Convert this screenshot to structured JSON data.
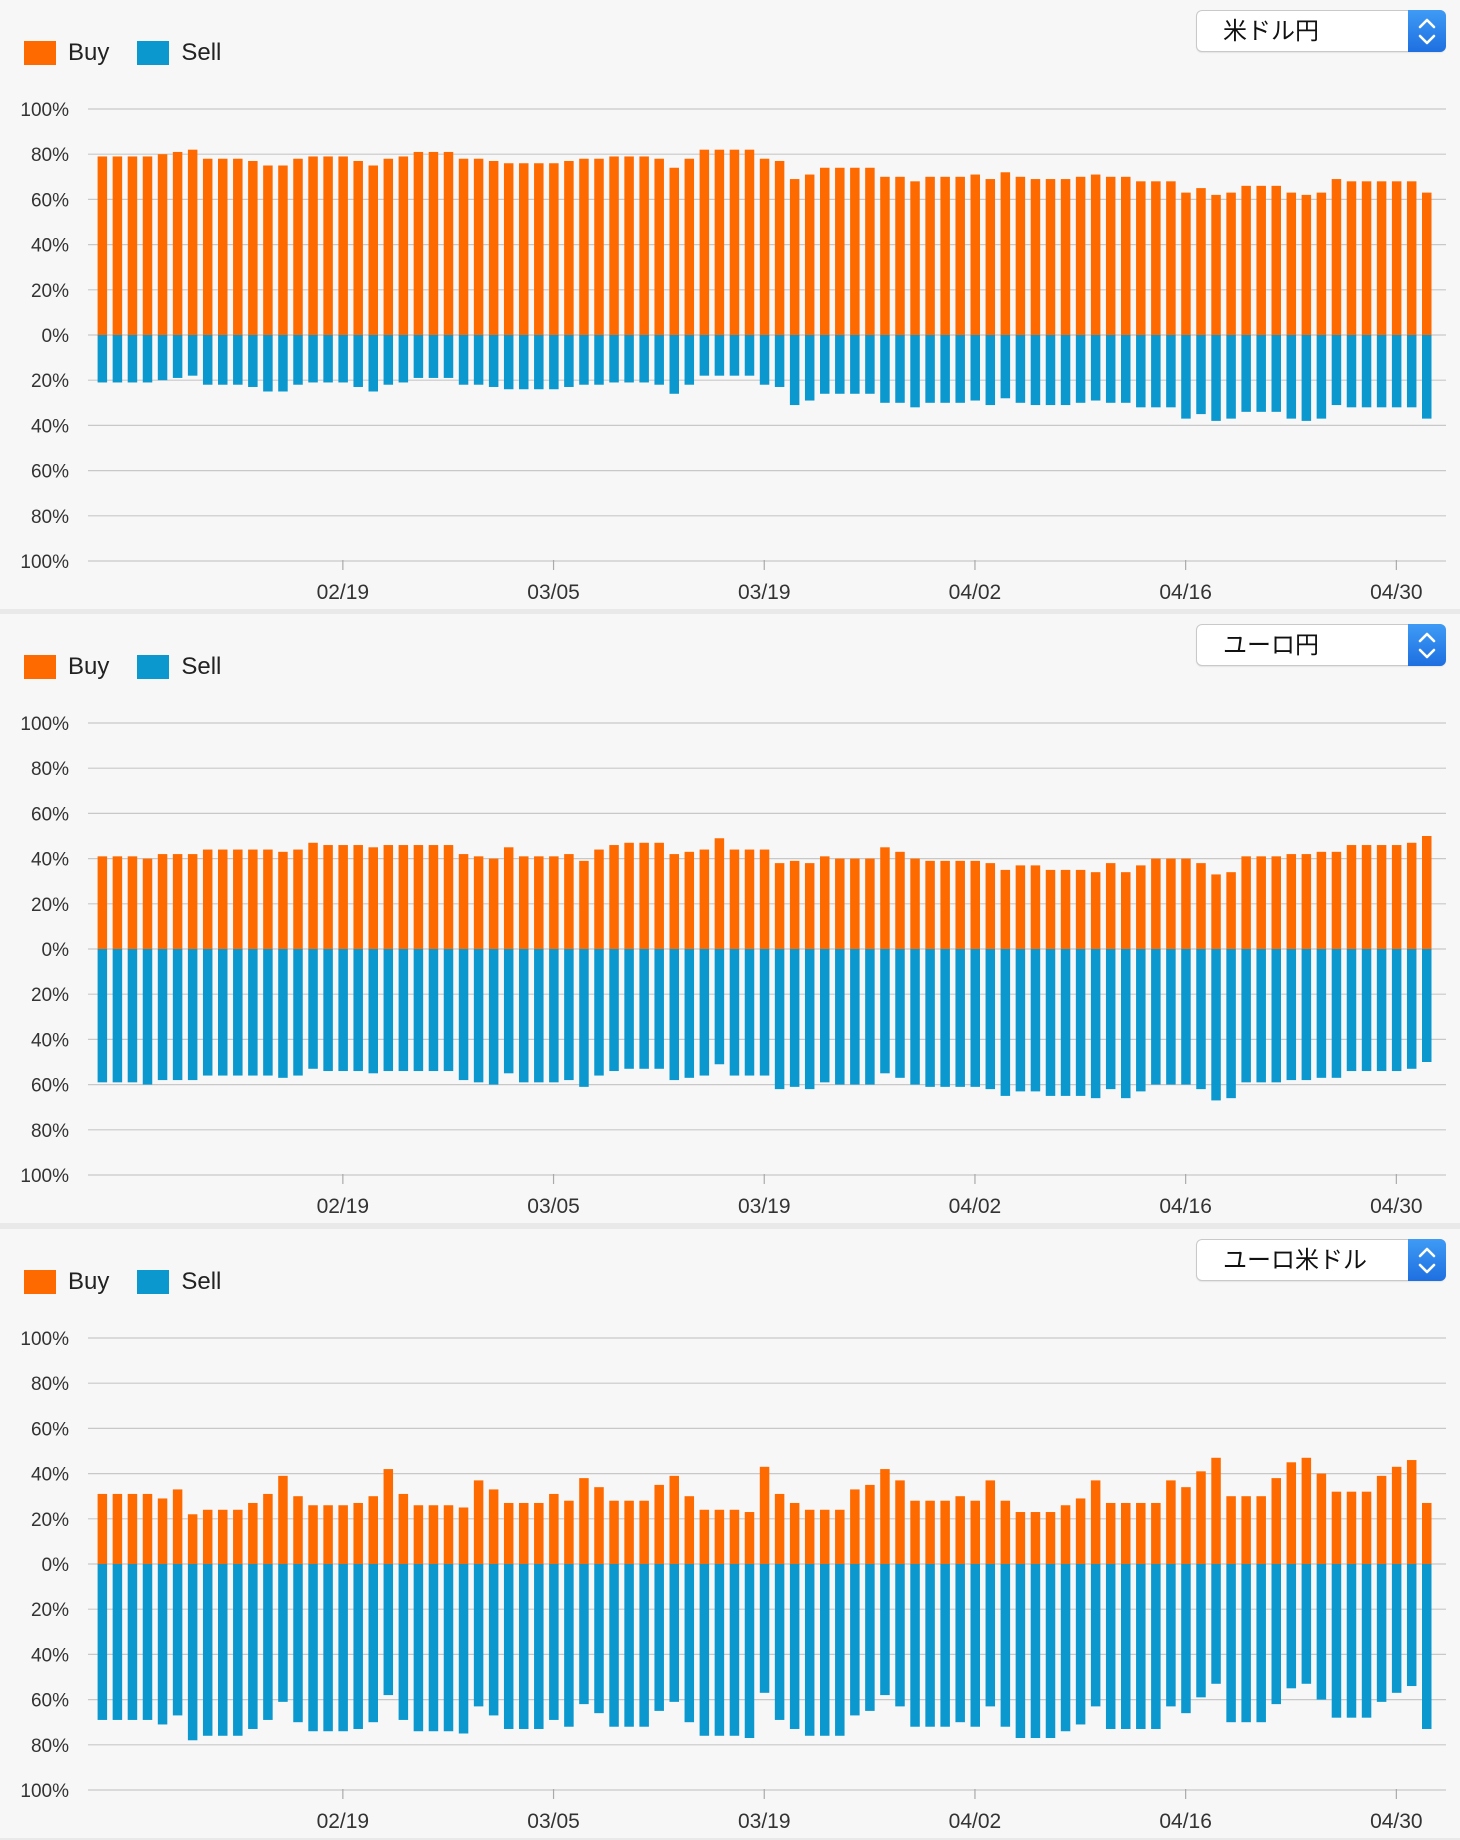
{
  "legend": {
    "buy_label": "Buy",
    "sell_label": "Sell"
  },
  "colors": {
    "buy": "#ff6a00",
    "sell": "#0a98cf",
    "grid": "#c8c8c8"
  },
  "panels": [
    {
      "currency": "米ドル円",
      "chart_data": {
        "type": "bar",
        "stacked_diverging": true,
        "y_tick_labels": [
          "100%",
          "80%",
          "60%",
          "40%",
          "20%",
          "0%",
          "20%",
          "40%",
          "60%",
          "80%",
          "100%"
        ],
        "x_tick_labels": [
          "02/19",
          "03/05",
          "03/19",
          "04/02",
          "04/16",
          "04/30"
        ],
        "x_tick_index": [
          10,
          24,
          38,
          52,
          66,
          80
        ],
        "ylim": [
          -100,
          100
        ],
        "series": [
          {
            "name": "Buy",
            "values": [
              79,
              79,
              79,
              79,
              80,
              81,
              82,
              78,
              78,
              78,
              77,
              75,
              75,
              78,
              79,
              79,
              79,
              77,
              75,
              78,
              79,
              81,
              81,
              81,
              78,
              78,
              77,
              76,
              76,
              76,
              76,
              77,
              78,
              78,
              79,
              79,
              79,
              78,
              74,
              78,
              82,
              82,
              82,
              82,
              78,
              77,
              69,
              71,
              74,
              74,
              74,
              74,
              70,
              70,
              68,
              70,
              70,
              70,
              71,
              69,
              72,
              70,
              69,
              69,
              69,
              70,
              71,
              70,
              70,
              68,
              68,
              68,
              63,
              65,
              62,
              63,
              66,
              66,
              66,
              63,
              62,
              63,
              69,
              68,
              68,
              68,
              68,
              68,
              63
            ]
          },
          {
            "name": "Sell",
            "values": [
              21,
              21,
              21,
              21,
              20,
              19,
              18,
              22,
              22,
              22,
              23,
              25,
              25,
              22,
              21,
              21,
              21,
              23,
              25,
              22,
              21,
              19,
              19,
              19,
              22,
              22,
              23,
              24,
              24,
              24,
              24,
              23,
              22,
              22,
              21,
              21,
              21,
              22,
              26,
              22,
              18,
              18,
              18,
              18,
              22,
              23,
              31,
              29,
              26,
              26,
              26,
              26,
              30,
              30,
              32,
              30,
              30,
              30,
              29,
              31,
              28,
              30,
              31,
              31,
              31,
              30,
              29,
              30,
              30,
              32,
              32,
              32,
              37,
              35,
              38,
              37,
              34,
              34,
              34,
              37,
              38,
              37,
              31,
              32,
              32,
              32,
              32,
              32,
              37
            ]
          }
        ]
      }
    },
    {
      "currency": "ユーロ円",
      "chart_data": {
        "type": "bar",
        "stacked_diverging": true,
        "y_tick_labels": [
          "100%",
          "80%",
          "60%",
          "40%",
          "20%",
          "0%",
          "20%",
          "40%",
          "60%",
          "80%",
          "100%"
        ],
        "x_tick_labels": [
          "02/19",
          "03/05",
          "03/19",
          "04/02",
          "04/16",
          "04/30"
        ],
        "x_tick_index": [
          10,
          24,
          38,
          52,
          66,
          80
        ],
        "ylim": [
          -100,
          100
        ],
        "series": [
          {
            "name": "Buy",
            "values": [
              41,
              41,
              41,
              40,
              42,
              42,
              42,
              44,
              44,
              44,
              44,
              44,
              43,
              44,
              47,
              46,
              46,
              46,
              45,
              46,
              46,
              46,
              46,
              46,
              42,
              41,
              40,
              45,
              41,
              41,
              41,
              42,
              39,
              44,
              46,
              47,
              47,
              47,
              42,
              43,
              44,
              49,
              44,
              44,
              44,
              38,
              39,
              38,
              41,
              40,
              40,
              40,
              45,
              43,
              40,
              39,
              39,
              39,
              39,
              38,
              35,
              37,
              37,
              35,
              35,
              35,
              34,
              38,
              34,
              37,
              40,
              40,
              40,
              38,
              33,
              34,
              41,
              41,
              41,
              42,
              42,
              43,
              43,
              46,
              46,
              46,
              46,
              47,
              50
            ]
          },
          {
            "name": "Sell",
            "values": [
              59,
              59,
              59,
              60,
              58,
              58,
              58,
              56,
              56,
              56,
              56,
              56,
              57,
              56,
              53,
              54,
              54,
              54,
              55,
              54,
              54,
              54,
              54,
              54,
              58,
              59,
              60,
              55,
              59,
              59,
              59,
              58,
              61,
              56,
              54,
              53,
              53,
              53,
              58,
              57,
              56,
              51,
              56,
              56,
              56,
              62,
              61,
              62,
              59,
              60,
              60,
              60,
              55,
              57,
              60,
              61,
              61,
              61,
              61,
              62,
              65,
              63,
              63,
              65,
              65,
              65,
              66,
              62,
              66,
              63,
              60,
              60,
              60,
              62,
              67,
              66,
              59,
              59,
              59,
              58,
              58,
              57,
              57,
              54,
              54,
              54,
              54,
              53,
              50
            ]
          }
        ]
      }
    },
    {
      "currency": "ユーロ米ドル",
      "chart_data": {
        "type": "bar",
        "stacked_diverging": true,
        "y_tick_labels": [
          "100%",
          "80%",
          "60%",
          "40%",
          "20%",
          "0%",
          "20%",
          "40%",
          "60%",
          "80%",
          "100%"
        ],
        "x_tick_labels": [
          "02/19",
          "03/05",
          "03/19",
          "04/02",
          "04/16",
          "04/30"
        ],
        "x_tick_index": [
          10,
          24,
          38,
          52,
          66,
          80
        ],
        "ylim": [
          -100,
          100
        ],
        "series": [
          {
            "name": "Buy",
            "values": [
              31,
              31,
              31,
              31,
              29,
              33,
              22,
              24,
              24,
              24,
              27,
              31,
              39,
              30,
              26,
              26,
              26,
              27,
              30,
              42,
              31,
              26,
              26,
              26,
              25,
              37,
              33,
              27,
              27,
              27,
              31,
              28,
              38,
              34,
              28,
              28,
              28,
              35,
              39,
              30,
              24,
              24,
              24,
              23,
              43,
              31,
              27,
              24,
              24,
              24,
              33,
              35,
              42,
              37,
              28,
              28,
              28,
              30,
              28,
              37,
              28,
              23,
              23,
              23,
              26,
              29,
              37,
              27,
              27,
              27,
              27,
              37,
              34,
              41,
              47,
              30,
              30,
              30,
              38,
              45,
              47,
              40,
              32,
              32,
              32,
              39,
              43,
              46,
              27
            ]
          },
          {
            "name": "Sell",
            "values": [
              69,
              69,
              69,
              69,
              71,
              67,
              78,
              76,
              76,
              76,
              73,
              69,
              61,
              70,
              74,
              74,
              74,
              73,
              70,
              58,
              69,
              74,
              74,
              74,
              75,
              63,
              67,
              73,
              73,
              73,
              69,
              72,
              62,
              66,
              72,
              72,
              72,
              65,
              61,
              70,
              76,
              76,
              76,
              77,
              57,
              69,
              73,
              76,
              76,
              76,
              67,
              65,
              58,
              63,
              72,
              72,
              72,
              70,
              72,
              63,
              72,
              77,
              77,
              77,
              74,
              71,
              63,
              73,
              73,
              73,
              73,
              63,
              66,
              59,
              53,
              70,
              70,
              70,
              62,
              55,
              53,
              60,
              68,
              68,
              68,
              61,
              57,
              54,
              73
            ]
          }
        ]
      }
    }
  ]
}
